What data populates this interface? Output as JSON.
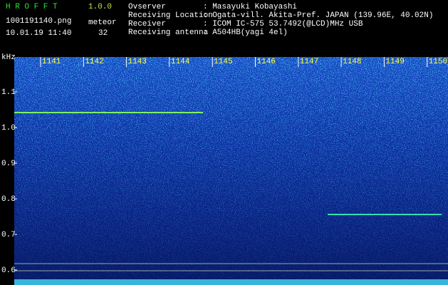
{
  "header": {
    "app": "H R O F F T",
    "version": "1.0.0",
    "filename": "1001191140.png",
    "mode": "meteor",
    "datetime": "10.01.19 11:40",
    "count": "32"
  },
  "info": [
    {
      "label": "Ovserver",
      "value": ": Masayuki Kobayashi"
    },
    {
      "label": "Receiving Location",
      "value": ": Ogata-vill. Akita-Pref. JAPAN (139.96E, 40.02N)"
    },
    {
      "label": "Receiver",
      "value": ": ICOM IC-575 53.7492(@LCD)MHz USB"
    },
    {
      "label": "Receiving antenna",
      "value": ": A504HB(yagi 4el)"
    }
  ],
  "axis": {
    "unit": "kHz",
    "yticks": [
      "1.1",
      "1.0",
      "0.9",
      "0.8",
      "0.7",
      "0.6"
    ],
    "xticks": [
      "1141",
      "1142",
      "1143",
      "1144",
      "1145",
      "1146",
      "1147",
      "1148",
      "1149",
      "1150"
    ]
  }
}
